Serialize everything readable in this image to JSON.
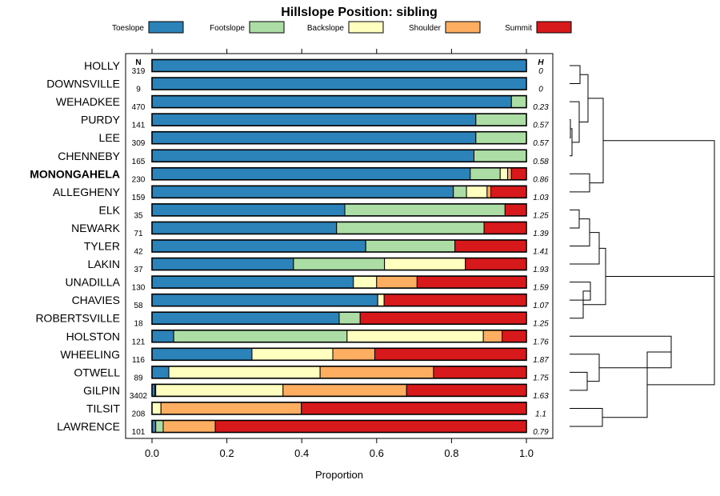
{
  "chart_data": {
    "type": "bar",
    "orientation": "horizontal-stacked",
    "title": "Hillslope Position: sibling",
    "xlabel": "Proportion",
    "xlim": [
      0,
      1
    ],
    "x_ticks": [
      "0.0",
      "0.2",
      "0.4",
      "0.6",
      "0.8",
      "1.0"
    ],
    "x_tick_values": [
      0,
      0.2,
      0.4,
      0.6,
      0.8,
      1.0
    ],
    "n_header": "N",
    "h_header": "H",
    "legend": [
      {
        "name": "Toeslope",
        "color": "#2b83ba"
      },
      {
        "name": "Footslope",
        "color": "#abdda4"
      },
      {
        "name": "Backslope",
        "color": "#ffffbf"
      },
      {
        "name": "Shoulder",
        "color": "#fdae61"
      },
      {
        "name": "Summit",
        "color": "#d7191c"
      }
    ],
    "highlight": "MONONGAHELA",
    "rows": [
      {
        "label": "HOLLY",
        "n": "319",
        "h": "0",
        "values": [
          1.0,
          0,
          0,
          0,
          0
        ]
      },
      {
        "label": "DOWNSVILLE",
        "n": "9",
        "h": "0",
        "values": [
          1.0,
          0,
          0,
          0,
          0
        ]
      },
      {
        "label": "WEHADKEE",
        "n": "470",
        "h": "0.23",
        "values": [
          0.96,
          0.04,
          0,
          0,
          0
        ]
      },
      {
        "label": "PURDY",
        "n": "141",
        "h": "0.57",
        "values": [
          0.865,
          0.135,
          0,
          0,
          0
        ]
      },
      {
        "label": "LEE",
        "n": "309",
        "h": "0.57",
        "values": [
          0.865,
          0.135,
          0,
          0,
          0
        ]
      },
      {
        "label": "CHENNEBY",
        "n": "165",
        "h": "0.58",
        "values": [
          0.86,
          0.14,
          0,
          0,
          0
        ]
      },
      {
        "label": "MONONGAHELA",
        "n": "230",
        "h": "0.86",
        "values": [
          0.85,
          0.08,
          0.02,
          0.01,
          0.04
        ]
      },
      {
        "label": "ALLEGHENY",
        "n": "159",
        "h": "1.03",
        "values": [
          0.805,
          0.035,
          0.055,
          0.01,
          0.095
        ]
      },
      {
        "label": "ELK",
        "n": "35",
        "h": "1.25",
        "values": [
          0.515,
          0.428,
          0,
          0,
          0.057
        ]
      },
      {
        "label": "NEWARK",
        "n": "71",
        "h": "1.39",
        "values": [
          0.493,
          0.394,
          0,
          0,
          0.113
        ]
      },
      {
        "label": "TYLER",
        "n": "42",
        "h": "1.41",
        "values": [
          0.571,
          0.238,
          0,
          0,
          0.191
        ]
      },
      {
        "label": "LAKIN",
        "n": "37",
        "h": "1.93",
        "values": [
          0.378,
          0.243,
          0.216,
          0,
          0.163
        ]
      },
      {
        "label": "UNADILLA",
        "n": "130",
        "h": "1.59",
        "values": [
          0.538,
          0,
          0.062,
          0.108,
          0.292
        ]
      },
      {
        "label": "CHAVIES",
        "n": "58",
        "h": "1.07",
        "values": [
          0.603,
          0,
          0.017,
          0,
          0.38
        ]
      },
      {
        "label": "ROBERTSVILLE",
        "n": "18",
        "h": "1.25",
        "values": [
          0.5,
          0.056,
          0,
          0,
          0.444
        ]
      },
      {
        "label": "HOLSTON",
        "n": "121",
        "h": "1.76",
        "values": [
          0.058,
          0.463,
          0.364,
          0.05,
          0.065
        ]
      },
      {
        "label": "WHEELING",
        "n": "116",
        "h": "1.87",
        "values": [
          0.267,
          0,
          0.216,
          0.112,
          0.405
        ]
      },
      {
        "label": "OTWELL",
        "n": "89",
        "h": "1.75",
        "values": [
          0.045,
          0,
          0.404,
          0.303,
          0.248
        ]
      },
      {
        "label": "GILPIN",
        "n": "3402",
        "h": "1.63",
        "values": [
          0.008,
          0.002,
          0.34,
          0.33,
          0.32
        ]
      },
      {
        "label": "TILSIT",
        "n": "208",
        "h": "1.1",
        "values": [
          0,
          0,
          0.024,
          0.375,
          0.601
        ]
      },
      {
        "label": "LAWRENCE",
        "n": "101",
        "h": "0.79",
        "values": [
          0.01,
          0.02,
          0,
          0.139,
          0.831
        ]
      }
    ]
  }
}
